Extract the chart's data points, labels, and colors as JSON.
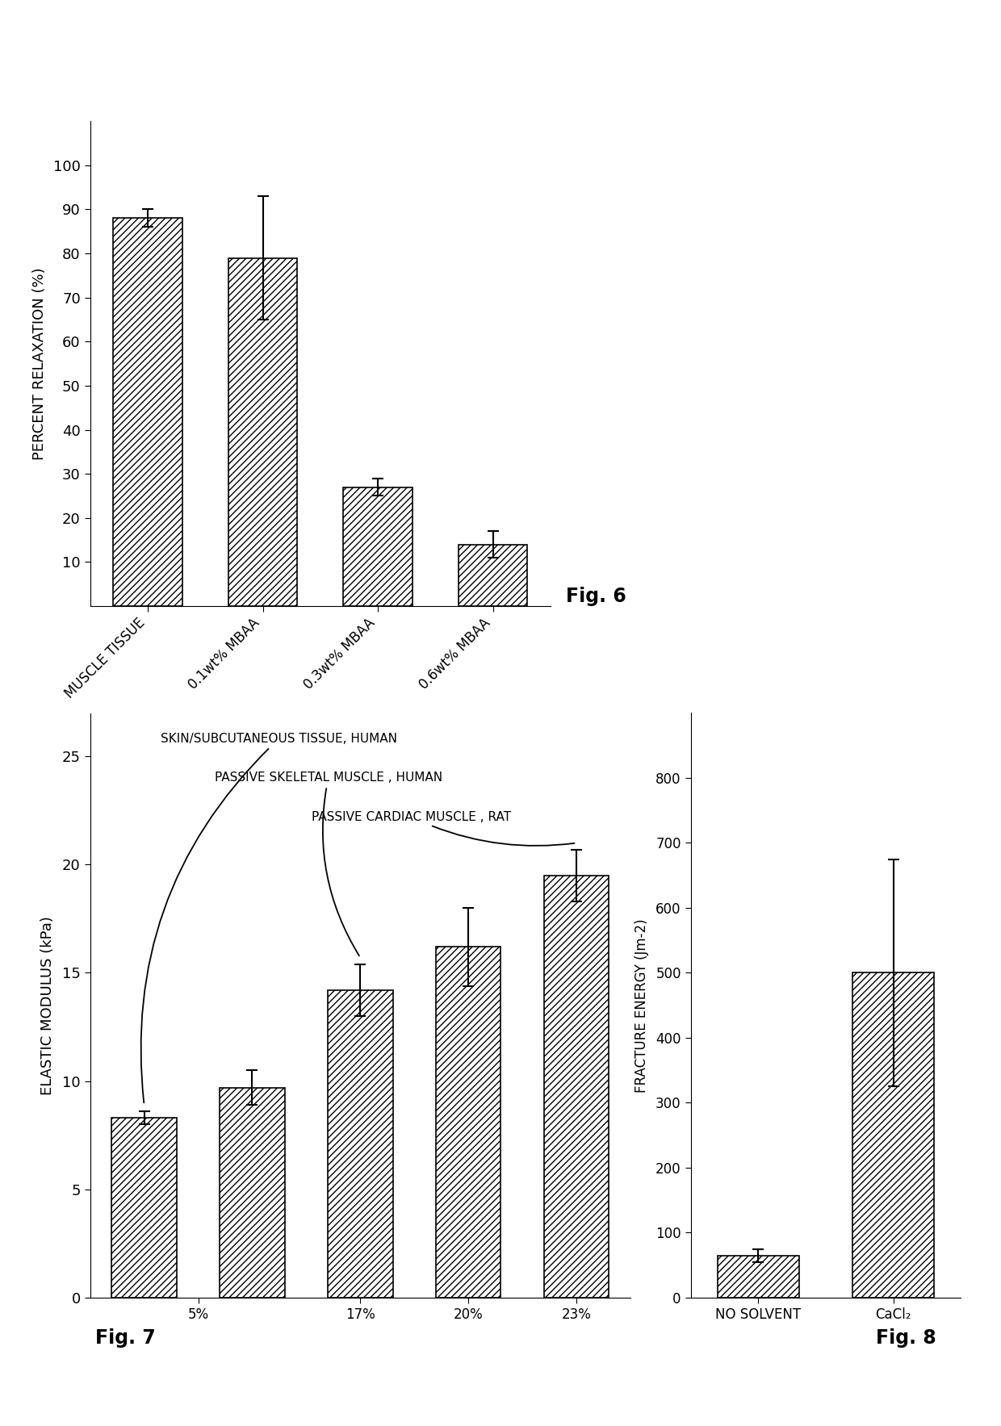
{
  "fig6": {
    "categories": [
      "MUSCLE TISSUE",
      "0.1wt% MBAA",
      "0.3wt% MBAA",
      "0.6wt% MBAA"
    ],
    "values": [
      88,
      79,
      27,
      14
    ],
    "errors": [
      2,
      14,
      2,
      3
    ],
    "ylabel": "PERCENT RELAXATION (%)",
    "ylim": [
      0,
      110
    ],
    "yticks": [
      10,
      20,
      30,
      40,
      50,
      60,
      70,
      80,
      90,
      100
    ],
    "fig_label": "Fig. 6"
  },
  "fig7": {
    "values": [
      8.3,
      9.7,
      14.2,
      16.2,
      19.5
    ],
    "errors": [
      0.3,
      0.8,
      1.2,
      1.8,
      1.2
    ],
    "ylabel": "ELASTIC MODULUS (kPa)",
    "ylim": [
      0,
      27
    ],
    "yticks": [
      0,
      5,
      10,
      15,
      20,
      25
    ],
    "xtick_positions": [
      0.5,
      2,
      3,
      4
    ],
    "xtick_labels": [
      "5%",
      "17%",
      "20%",
      "23%"
    ],
    "fig_label": "Fig. 7",
    "ann1_text": "SKIN/SUBCUTANEOUS TISSUE, HUMAN",
    "ann2_text": "PASSIVE SKELETAL MUSCLE , HUMAN",
    "ann3_text": "PASSIVE CARDIAC MUSCLE , RAT"
  },
  "fig8": {
    "categories": [
      "NO SOLVENT",
      "CaCl₂"
    ],
    "values": [
      65,
      500
    ],
    "errors": [
      10,
      175
    ],
    "ylabel": "FRACTURE ENERGY (Jm-2)",
    "ylim": [
      0,
      900
    ],
    "yticks": [
      0,
      100,
      200,
      300,
      400,
      500,
      600,
      700,
      800
    ],
    "fig_label": "Fig. 8"
  },
  "hatch_pattern": "////",
  "bar_color": "white",
  "edge_color": "black",
  "background_color": "white"
}
